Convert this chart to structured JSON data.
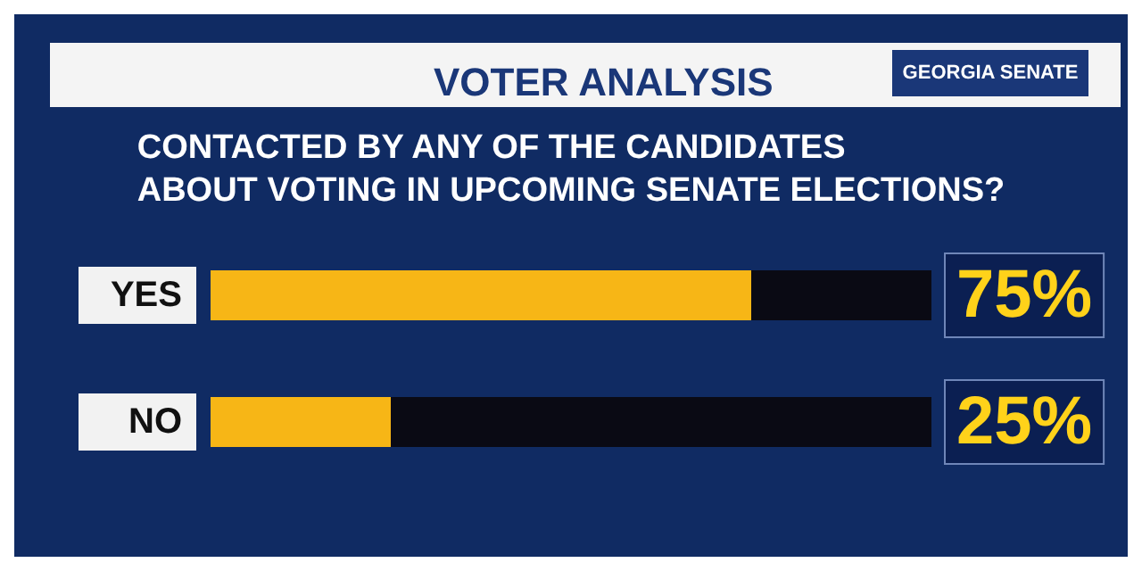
{
  "chart_data": {
    "type": "bar",
    "orientation": "horizontal",
    "subtitle": "VOTER ANALYSIS",
    "title": "CONTACTED BY ANY OF THE CANDIDATES\nABOUT VOTING IN UPCOMING SENATE ELECTIONS?",
    "annotations": [
      "GEORGIA SENATE"
    ],
    "categories": [
      "YES",
      "NO"
    ],
    "values": [
      75,
      25
    ],
    "value_labels": [
      "75%",
      "25%"
    ],
    "color": "#f7b616",
    "xlim": [
      0,
      100
    ],
    "tick_labels": "y"
  }
}
